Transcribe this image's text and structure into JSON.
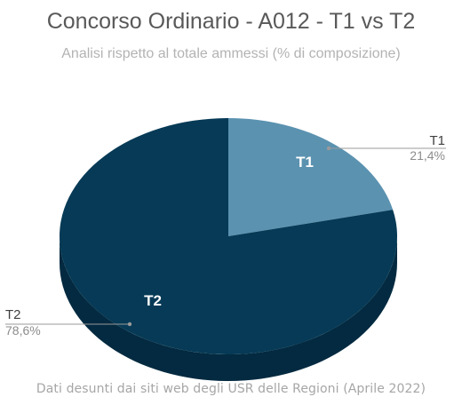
{
  "chart_data": {
    "type": "pie",
    "title": "Concorso Ordinario - A012 - T1 vs T2",
    "subtitle": "Analisi rispetto al totale ammessi (% di composizione)",
    "categories": [
      "T1",
      "T2"
    ],
    "values": [
      21.4,
      78.6
    ],
    "value_labels": [
      "21,4%",
      "78,6%"
    ],
    "colors": [
      "#5b92b0",
      "#063a56"
    ],
    "side_colors": [
      "#3e6e88",
      "#032a40"
    ],
    "three_d": true,
    "legend": "none",
    "footer": "Dati desunti dai siti web degli USR delle Regioni (Aprile 2022)"
  }
}
